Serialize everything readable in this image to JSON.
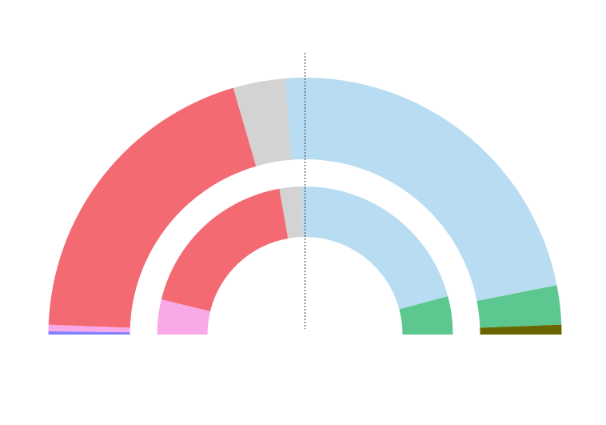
{
  "chart_data": {
    "type": "pie",
    "subtype": "parliament-half-donut",
    "title": "",
    "majority_line": true,
    "rings": [
      {
        "name": "",
        "slices": [
          {
            "value": 1,
            "color": "#8080ff"
          },
          {
            "value": 2,
            "color": "#f9a8e8"
          },
          {
            "value": 97,
            "color": "#f36a72"
          },
          {
            "value": 16,
            "color": "#d3d3d3"
          },
          {
            "value": 113,
            "color": "#b8dcf2"
          },
          {
            "value": 12,
            "color": "#5cc88f"
          },
          {
            "value": 3,
            "color": "#6b6500"
          }
        ]
      },
      {
        "name": "",
        "slices": [
          {
            "value": 11,
            "color": "#f9a8e8"
          },
          {
            "value": 53,
            "color": "#f36a72"
          },
          {
            "value": 7,
            "color": "#d3d3d3"
          },
          {
            "value": 61,
            "color": "#b8dcf2"
          },
          {
            "value": 12,
            "color": "#5cc88f"
          }
        ]
      }
    ]
  }
}
